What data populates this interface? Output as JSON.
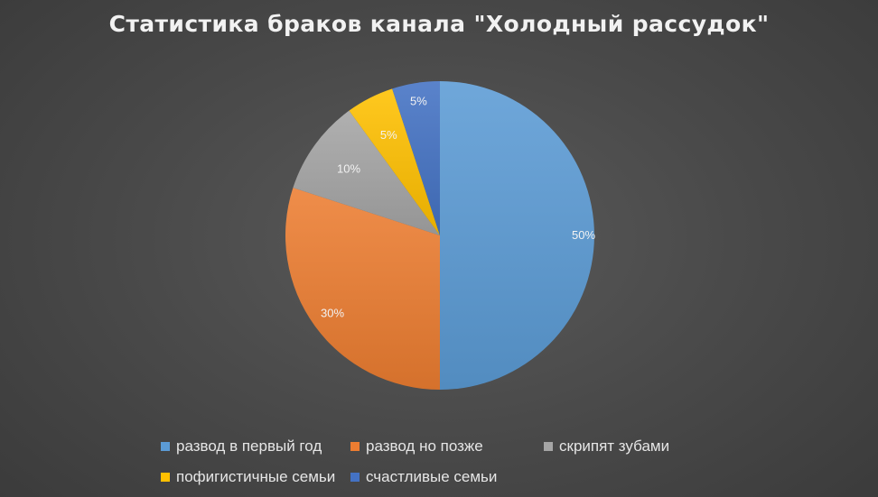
{
  "chart_data": {
    "type": "pie",
    "title": "Статистика браков канала \"Холодный рассудок\"",
    "categories": [
      "развод в первый год",
      "развод но позже",
      "скрипят зубами",
      "пофигистичные семьи",
      "счастливые семьи"
    ],
    "values": [
      50,
      30,
      10,
      5,
      5
    ],
    "data_labels": [
      "50%",
      "30%",
      "10%",
      "5%",
      "5%"
    ],
    "colors": [
      "#5b9bd5",
      "#ed7d31",
      "#a5a5a5",
      "#ffc000",
      "#4472c4"
    ],
    "legend_position": "bottom",
    "start_angle_deg": 0,
    "direction": "clockwise"
  },
  "background_color": "#404040",
  "text_color": "#f2f2f2"
}
